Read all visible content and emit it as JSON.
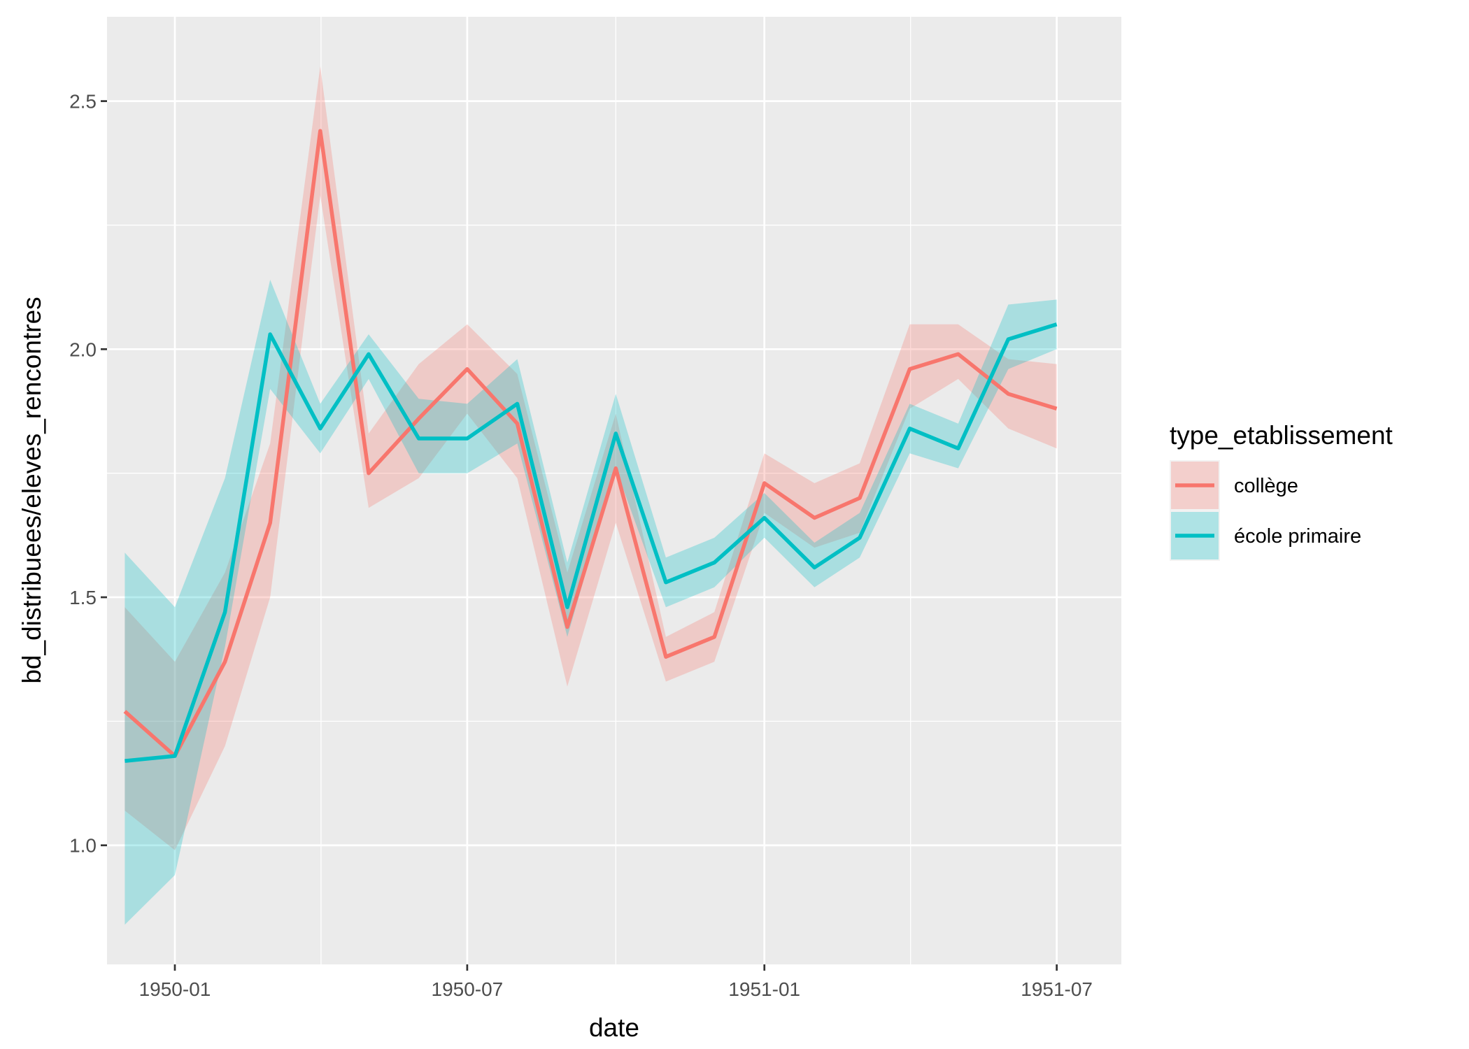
{
  "chart_data": {
    "type": "line",
    "xlabel": "date",
    "ylabel": "bd_distribuees/eleves_rencontres",
    "x_ticks": [
      "1950-01",
      "1950-07",
      "1951-01",
      "1951-07"
    ],
    "y_ticks": [
      "1.0",
      "1.5",
      "2.0",
      "2.5"
    ],
    "ylim": [
      0.76,
      2.67
    ],
    "xlim": [
      "1949-11-20",
      "1951-08-10"
    ],
    "grid": true,
    "legend": {
      "title": "type_etablissement",
      "position": "right"
    },
    "x": [
      "1949-12-01",
      "1950-01-01",
      "1950-02-01",
      "1950-03-01",
      "1950-04-01",
      "1950-05-01",
      "1950-06-01",
      "1950-07-01",
      "1950-08-01",
      "1950-09-01",
      "1950-10-01",
      "1950-11-01",
      "1950-12-01",
      "1951-01-01",
      "1951-02-01",
      "1951-03-01",
      "1951-04-01",
      "1951-05-01",
      "1951-06-01",
      "1951-07-01"
    ],
    "series": [
      {
        "name": "collège",
        "color": "#F8766D",
        "values": [
          1.27,
          1.18,
          1.37,
          1.65,
          2.44,
          1.75,
          1.86,
          1.96,
          1.85,
          1.44,
          1.76,
          1.38,
          1.42,
          1.73,
          1.66,
          1.7,
          1.96,
          1.99,
          1.91,
          1.88
        ],
        "lower": [
          1.07,
          0.99,
          1.2,
          1.5,
          2.31,
          1.68,
          1.74,
          1.87,
          1.74,
          1.32,
          1.65,
          1.33,
          1.37,
          1.67,
          1.6,
          1.63,
          1.88,
          1.94,
          1.84,
          1.8
        ],
        "upper": [
          1.48,
          1.37,
          1.55,
          1.81,
          2.57,
          1.83,
          1.97,
          2.05,
          1.95,
          1.55,
          1.87,
          1.42,
          1.47,
          1.79,
          1.73,
          1.77,
          2.05,
          2.05,
          1.98,
          1.97
        ]
      },
      {
        "name": "école primaire",
        "color": "#00BFC4",
        "values": [
          1.17,
          1.18,
          1.47,
          2.03,
          1.84,
          1.99,
          1.82,
          1.82,
          1.89,
          1.48,
          1.83,
          1.53,
          1.57,
          1.66,
          1.56,
          1.62,
          1.84,
          1.8,
          2.02,
          2.05
        ],
        "lower": [
          0.84,
          0.94,
          1.4,
          1.92,
          1.79,
          1.94,
          1.75,
          1.75,
          1.81,
          1.42,
          1.76,
          1.48,
          1.52,
          1.62,
          1.52,
          1.58,
          1.79,
          1.76,
          1.96,
          2.0
        ],
        "upper": [
          1.59,
          1.48,
          1.74,
          2.14,
          1.89,
          2.03,
          1.9,
          1.89,
          1.98,
          1.57,
          1.91,
          1.58,
          1.62,
          1.71,
          1.61,
          1.67,
          1.89,
          1.85,
          2.09,
          2.1
        ]
      }
    ]
  }
}
